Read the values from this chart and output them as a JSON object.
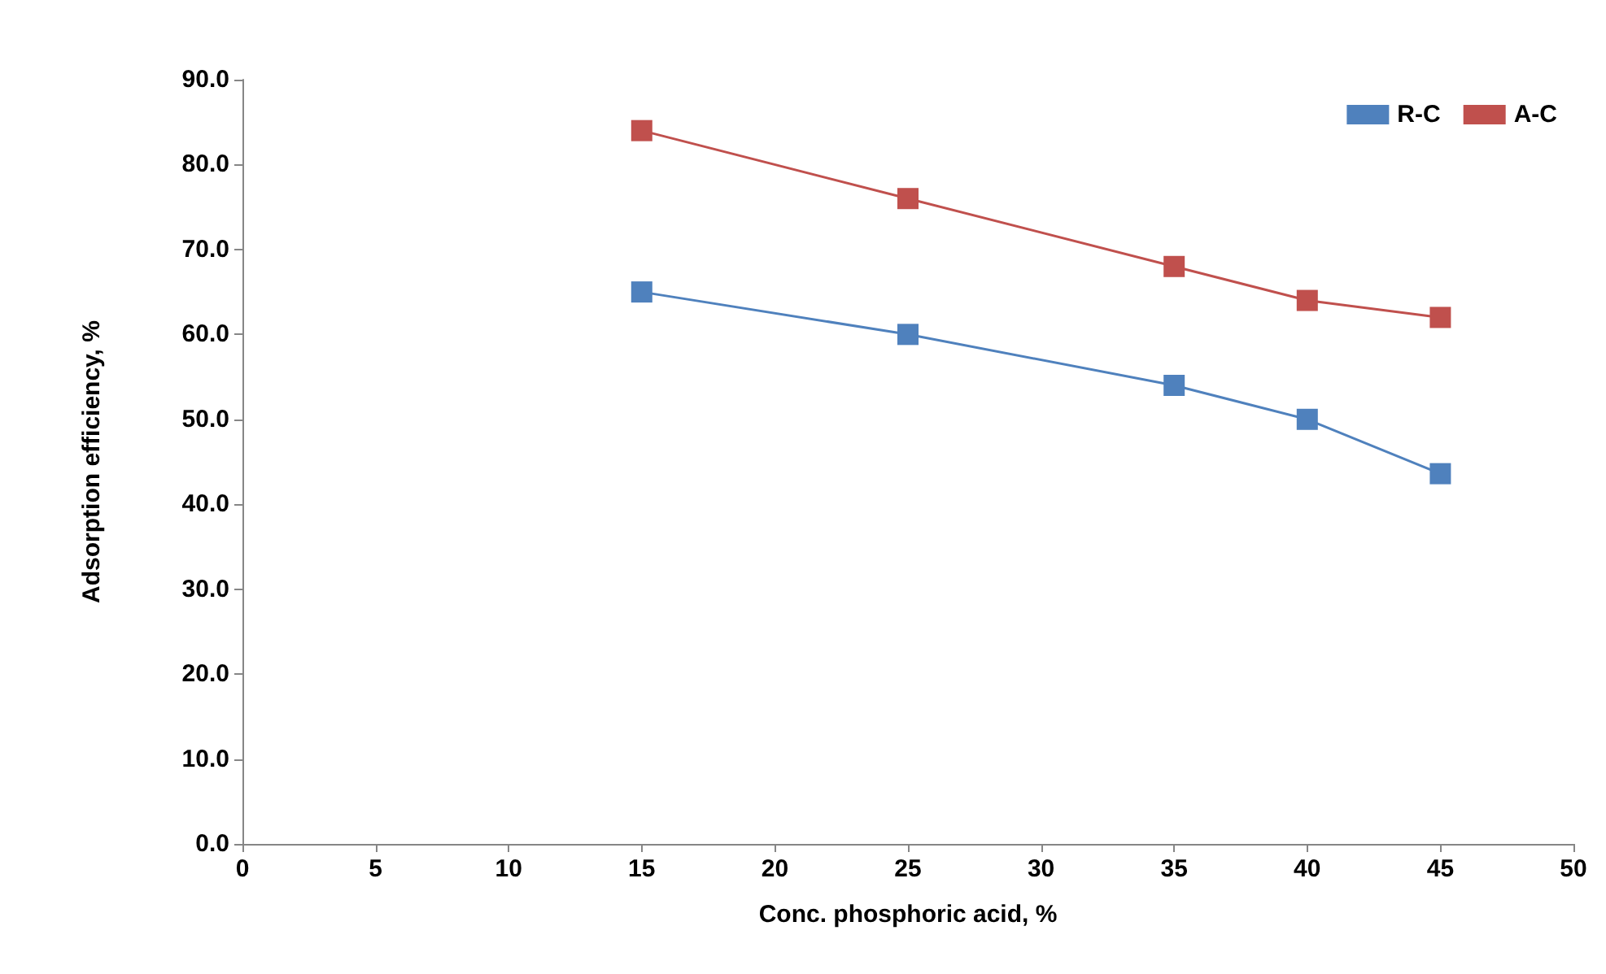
{
  "chart_data": {
    "type": "line",
    "xlabel": "Conc. phosphoric acid, %",
    "ylabel": "Adsorption efficiency, %",
    "x": [
      15,
      25,
      35,
      40,
      45
    ],
    "series": [
      {
        "name": "R-C",
        "color": "#4f81bd",
        "values": [
          65,
          60,
          54,
          50,
          43.6
        ]
      },
      {
        "name": "A-C",
        "color": "#c0504d",
        "values": [
          84,
          76,
          68,
          64,
          62
        ]
      }
    ],
    "xlim": [
      0,
      50
    ],
    "xticks": [
      0,
      5,
      10,
      15,
      20,
      25,
      30,
      35,
      40,
      45,
      50
    ],
    "ylim": [
      0,
      90
    ],
    "yticks": [
      {
        "value": 0,
        "label": "0.0"
      },
      {
        "value": 10,
        "label": "10.0"
      },
      {
        "value": 20,
        "label": "20.0"
      },
      {
        "value": 30,
        "label": "30.0"
      },
      {
        "value": 40,
        "label": "40.0"
      },
      {
        "value": 50,
        "label": "50.0"
      },
      {
        "value": 60,
        "label": "60.0"
      },
      {
        "value": 70,
        "label": "70.0"
      },
      {
        "value": 80,
        "label": "80.0"
      },
      {
        "value": 90,
        "label": "90.0"
      }
    ],
    "grid": false,
    "legend": "top right",
    "marker": "square",
    "line_style": "solid"
  }
}
